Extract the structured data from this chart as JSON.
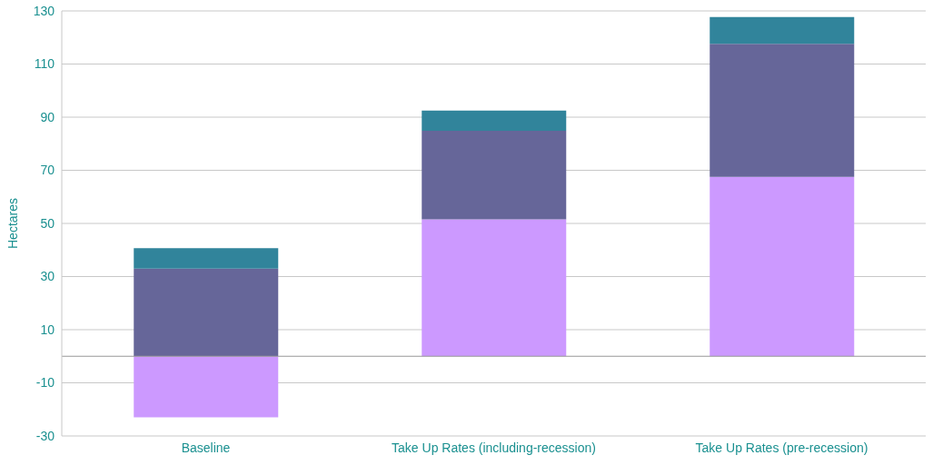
{
  "chart_data": {
    "type": "bar",
    "ylabel": "Hectares",
    "categories": [
      "Baseline",
      "Take Up Rates (including-recession)",
      "Take Up Rates (pre-recession)"
    ],
    "stacked": true,
    "series": [
      {
        "color": "#cc99ff",
        "values": [
          -23,
          51.5,
          67.5
        ]
      },
      {
        "color": "#666699",
        "values": [
          33,
          33.4,
          50.1
        ]
      },
      {
        "color": "#31849b",
        "values": [
          7.7,
          7.6,
          10.1
        ]
      }
    ],
    "ylim": [
      -30,
      130
    ],
    "yticks": [
      -30,
      -10,
      10,
      30,
      50,
      70,
      90,
      110,
      130
    ],
    "grid": "y",
    "legend": false
  }
}
